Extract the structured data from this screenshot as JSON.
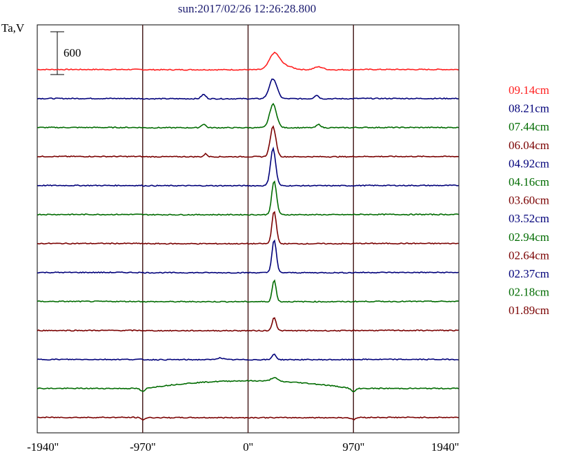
{
  "title": "sun:2017/02/26 12:26:28.800",
  "y_unit_label": "Ta,V",
  "scale_bar_label": "600",
  "chart_data": {
    "type": "line",
    "title": "sun:2017/02/26 12:26:28.800",
    "ylabel": "Ta,V",
    "xlabel": "",
    "xlim": [
      -1940,
      1940
    ],
    "x_ticks": [
      -1940,
      -970,
      0,
      970,
      1940
    ],
    "x_tick_labels": [
      "-1940''",
      "-970''",
      "0''",
      "970''",
      "1940''"
    ],
    "vertical_guides": [
      -970,
      0,
      970
    ],
    "scale_bar_value": 600,
    "grid": false,
    "legend_position": "right",
    "series": [
      {
        "name": "09.14cm",
        "color": "#ff1f1f",
        "base": 0,
        "features": [
          {
            "x": 240,
            "amp": 210,
            "w": 45
          },
          {
            "x": 330,
            "amp": 60,
            "w": 70
          },
          {
            "x": 650,
            "amp": 40,
            "w": 40
          }
        ]
      },
      {
        "name": "08.21cm",
        "color": "#00007a",
        "base": 0,
        "features": [
          {
            "x": 230,
            "amp": 280,
            "w": 35
          },
          {
            "x": -410,
            "amp": 60,
            "w": 20
          },
          {
            "x": 630,
            "amp": 50,
            "w": 20
          }
        ]
      },
      {
        "name": "07.44cm",
        "color": "#006b00",
        "base": 0,
        "features": [
          {
            "x": 230,
            "amp": 330,
            "w": 32
          },
          {
            "x": -410,
            "amp": 50,
            "w": 20
          },
          {
            "x": 650,
            "amp": 45,
            "w": 20
          }
        ]
      },
      {
        "name": "06.04cm",
        "color": "#7a0000",
        "base": 0,
        "features": [
          {
            "x": 230,
            "amp": 420,
            "w": 26
          },
          {
            "x": -390,
            "amp": 40,
            "w": 15
          }
        ]
      },
      {
        "name": "04.92cm",
        "color": "#00007a",
        "base": 0,
        "features": [
          {
            "x": 230,
            "amp": 520,
            "w": 24
          }
        ]
      },
      {
        "name": "04.16cm",
        "color": "#006b00",
        "base": 0,
        "features": [
          {
            "x": 240,
            "amp": 470,
            "w": 22
          }
        ]
      },
      {
        "name": "03.60cm",
        "color": "#7a0000",
        "base": 0,
        "features": [
          {
            "x": 240,
            "amp": 460,
            "w": 20
          }
        ]
      },
      {
        "name": "03.52cm",
        "color": "#00007a",
        "base": 0,
        "features": [
          {
            "x": 240,
            "amp": 460,
            "w": 20
          }
        ]
      },
      {
        "name": "02.94cm",
        "color": "#006b00",
        "base": 0,
        "features": [
          {
            "x": 240,
            "amp": 300,
            "w": 18
          }
        ]
      },
      {
        "name": "02.64cm",
        "color": "#7a0000",
        "base": 0,
        "features": [
          {
            "x": 240,
            "amp": 190,
            "w": 18
          }
        ]
      },
      {
        "name": "02.37cm",
        "color": "#00007a",
        "base": 0,
        "features": [
          {
            "x": 240,
            "amp": 80,
            "w": 18
          },
          {
            "x": -260,
            "amp": 25,
            "w": 30
          }
        ]
      },
      {
        "name": "02.18cm",
        "color": "#006b00",
        "base": 0,
        "features": [
          {
            "x": 240,
            "amp": 50,
            "w": 30
          }
        ],
        "limb": {
          "dome": 110,
          "edge_dip": -110
        }
      },
      {
        "name": "01.89cm",
        "color": "#7a0000",
        "base": 0,
        "features": [],
        "limb": {
          "dome": 0,
          "edge_dip": -70
        }
      }
    ]
  }
}
